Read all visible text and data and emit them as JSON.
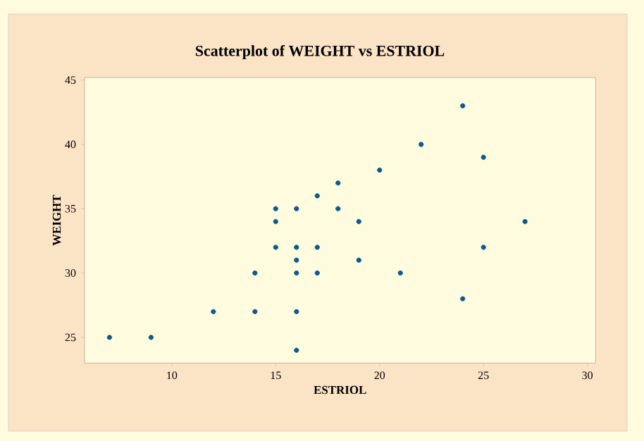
{
  "chart_data": {
    "type": "scatter",
    "title": "Scatterplot of WEIGHT vs ESTRIOL",
    "xlabel": "ESTRIOL",
    "ylabel": "WEIGHT",
    "x": [
      7,
      9,
      12,
      14,
      14,
      15,
      15,
      15,
      16,
      16,
      16,
      16,
      16,
      16,
      17,
      17,
      17,
      18,
      18,
      19,
      19,
      20,
      21,
      22,
      24,
      24,
      25,
      25,
      27
    ],
    "values": [
      25,
      25,
      27,
      27,
      30,
      35,
      34,
      32,
      35,
      32,
      31,
      30,
      27,
      24,
      36,
      32,
      30,
      37,
      35,
      34,
      31,
      38,
      30,
      40,
      43,
      28,
      39,
      32,
      34
    ],
    "color": "#0b5a8e",
    "marker": "circle",
    "xlim": [
      5.8,
      30.4
    ],
    "ylim": [
      23,
      45.2
    ],
    "xticks": [
      10,
      15,
      20,
      25,
      30
    ],
    "yticks": [
      25,
      30,
      35,
      40,
      45
    ],
    "grid": false
  }
}
